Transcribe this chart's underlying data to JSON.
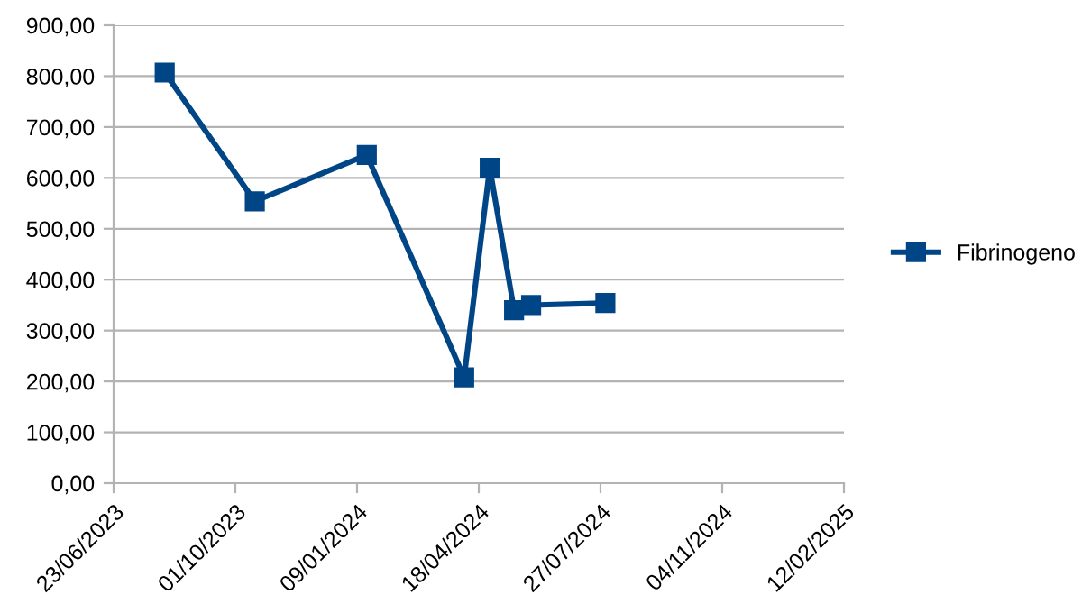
{
  "chart_data": {
    "type": "line",
    "x": [
      "2023-08-04",
      "2023-10-17",
      "2024-01-17",
      "2024-04-06",
      "2024-04-27",
      "2024-05-17",
      "2024-05-31",
      "2024-07-31"
    ],
    "series": [
      {
        "name": "Fibrinogeno",
        "color": "#004586",
        "values": [
          807,
          554,
          645,
          208,
          620,
          340,
          350,
          354
        ]
      }
    ],
    "xlim": [
      "2023-06-23",
      "2025-02-12"
    ],
    "xticks": [
      {
        "value": "2023-06-23",
        "label": "23/06/2023"
      },
      {
        "value": "2023-10-01",
        "label": "01/10/2023"
      },
      {
        "value": "2024-01-09",
        "label": "09/01/2024"
      },
      {
        "value": "2024-04-18",
        "label": "18/04/2024"
      },
      {
        "value": "2024-07-27",
        "label": "27/07/2024"
      },
      {
        "value": "2024-11-04",
        "label": "04/11/2024"
      },
      {
        "value": "2025-02-12",
        "label": "12/02/2025"
      }
    ],
    "ylim": [
      0,
      900
    ],
    "yticks": [
      {
        "value": 0,
        "label": "0,00"
      },
      {
        "value": 100,
        "label": "100,00"
      },
      {
        "value": 200,
        "label": "200,00"
      },
      {
        "value": 300,
        "label": "300,00"
      },
      {
        "value": 400,
        "label": "400,00"
      },
      {
        "value": 500,
        "label": "500,00"
      },
      {
        "value": 600,
        "label": "600,00"
      },
      {
        "value": 700,
        "label": "700,00"
      },
      {
        "value": 800,
        "label": "800,00"
      },
      {
        "value": 900,
        "label": "900,00"
      }
    ],
    "grid": "y",
    "legend": "right",
    "marker": "square",
    "line_style": "solid"
  }
}
